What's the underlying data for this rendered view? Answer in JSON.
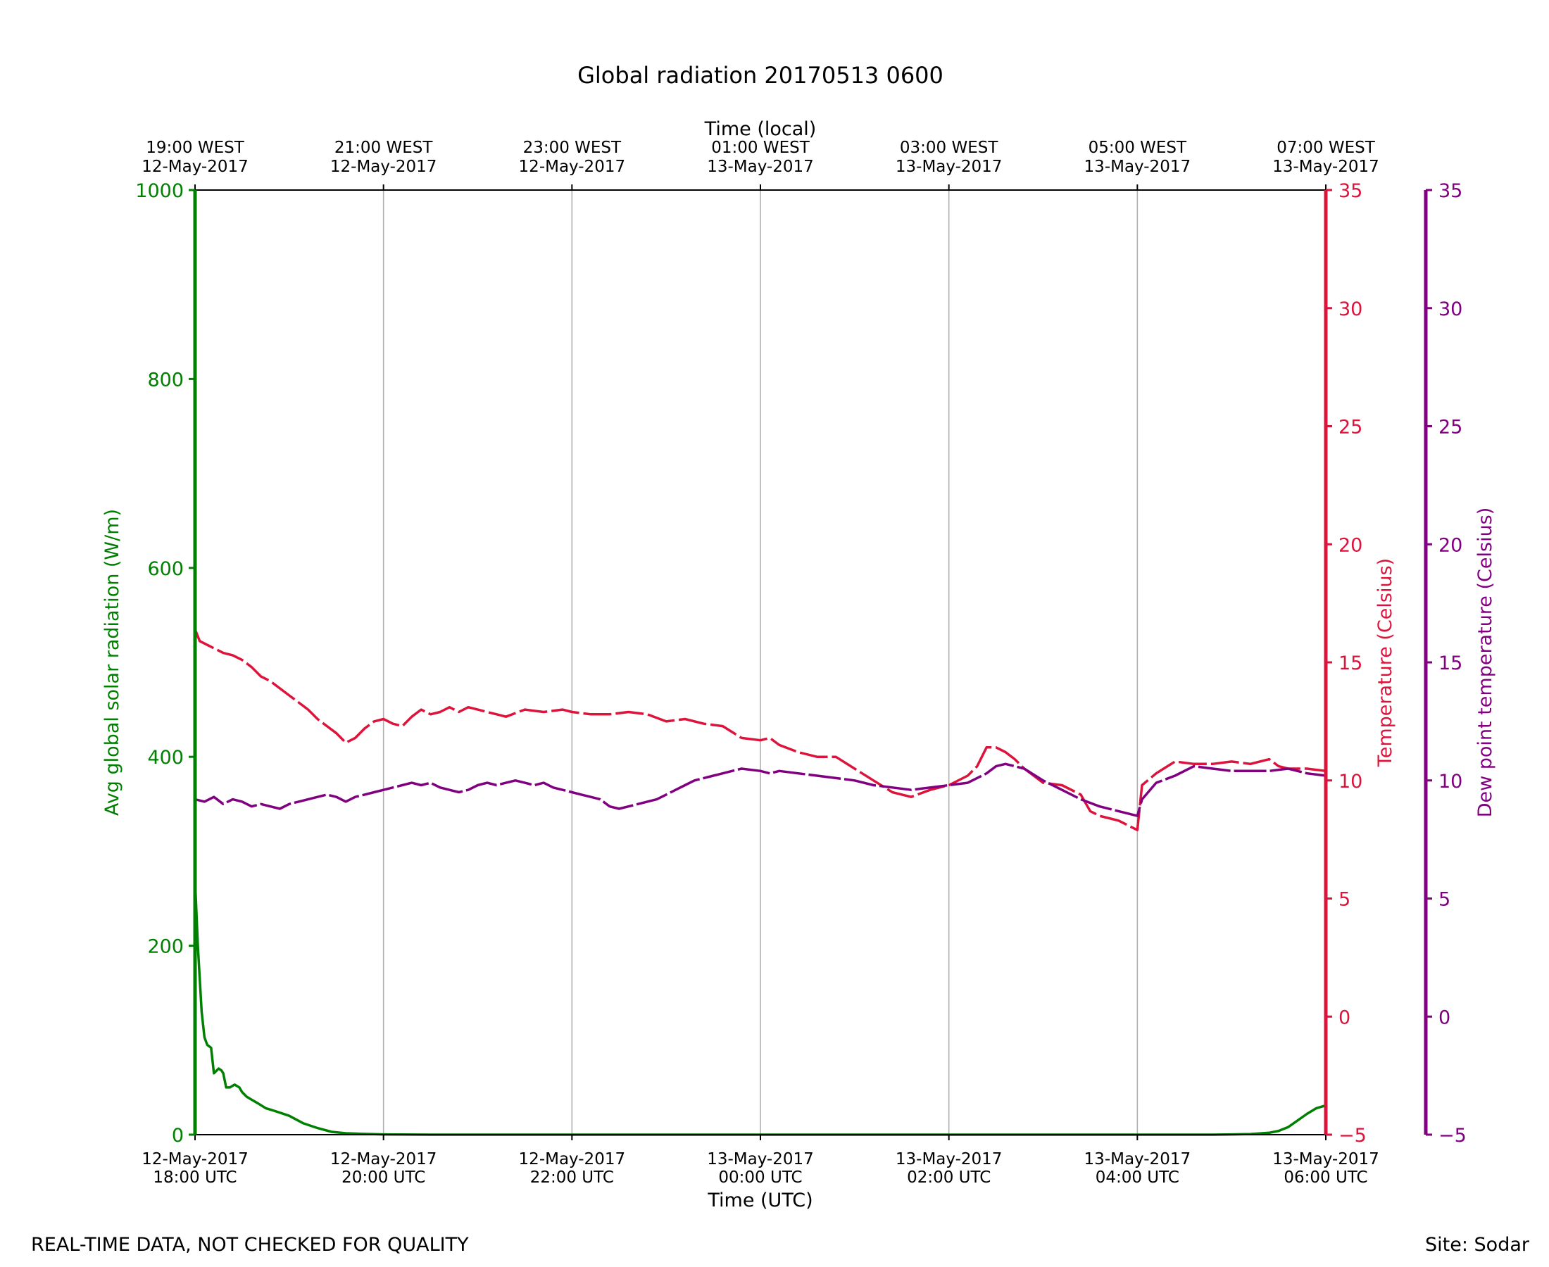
{
  "chart_data": {
    "type": "line",
    "title": "Global radiation 20170513 0600",
    "xlabel": "Time (UTC)",
    "xlabel_top": "Time (local)",
    "ylabel_left": "Avg global solar radiation (W/m)",
    "ylabel_right1": "Temperature (Celsius)",
    "ylabel_right2": "Dew point temperature (Celsius)",
    "footer_left": "REAL-TIME DATA, NOT CHECKED FOR QUALITY",
    "footer_right": "Site: Sodar",
    "x_range_hours": [
      0,
      12
    ],
    "bottom_ticks": [
      {
        "h": 0,
        "line1": "12-May-2017",
        "line2": "18:00 UTC"
      },
      {
        "h": 2,
        "line1": "12-May-2017",
        "line2": "20:00 UTC"
      },
      {
        "h": 4,
        "line1": "12-May-2017",
        "line2": "22:00 UTC"
      },
      {
        "h": 6,
        "line1": "13-May-2017",
        "line2": "00:00 UTC"
      },
      {
        "h": 8,
        "line1": "13-May-2017",
        "line2": "02:00 UTC"
      },
      {
        "h": 10,
        "line1": "13-May-2017",
        "line2": "04:00 UTC"
      },
      {
        "h": 12,
        "line1": "13-May-2017",
        "line2": "06:00 UTC"
      }
    ],
    "top_ticks": [
      {
        "h": 0,
        "line1": "19:00 WEST",
        "line2": "12-May-2017"
      },
      {
        "h": 2,
        "line1": "21:00 WEST",
        "line2": "12-May-2017"
      },
      {
        "h": 4,
        "line1": "23:00 WEST",
        "line2": "12-May-2017"
      },
      {
        "h": 6,
        "line1": "01:00 WEST",
        "line2": "13-May-2017"
      },
      {
        "h": 8,
        "line1": "03:00 WEST",
        "line2": "13-May-2017"
      },
      {
        "h": 10,
        "line1": "05:00 WEST",
        "line2": "13-May-2017"
      },
      {
        "h": 12,
        "line1": "07:00 WEST",
        "line2": "13-May-2017"
      }
    ],
    "ylim_radiation": [
      0,
      1000
    ],
    "yticks_radiation": [
      0,
      200,
      400,
      600,
      800,
      1000
    ],
    "ylim_temperature": [
      -5,
      35
    ],
    "yticks_temperature": [
      -5,
      0,
      5,
      10,
      15,
      20,
      25,
      30,
      35
    ],
    "colors": {
      "radiation": "#008000",
      "temperature": "#dc143c",
      "dewpoint": "#800080",
      "grid": "#b0b0b0",
      "text": "#000000"
    },
    "series": [
      {
        "name": "Avg global solar radiation",
        "axis": "radiation",
        "x": [
          0,
          0.03,
          0.07,
          0.1,
          0.13,
          0.17,
          0.2,
          0.25,
          0.28,
          0.3,
          0.33,
          0.37,
          0.42,
          0.47,
          0.5,
          0.55,
          0.6,
          0.67,
          0.75,
          0.85,
          1.0,
          1.15,
          1.3,
          1.45,
          1.6,
          1.75,
          1.9,
          2.0,
          2.2,
          2.5,
          4,
          6,
          8,
          10,
          10.5,
          10.8,
          11.0,
          11.2,
          11.4,
          11.5,
          11.6,
          11.7,
          11.8,
          11.9,
          12.0
        ],
        "y": [
          270,
          200,
          130,
          103,
          95,
          92,
          65,
          70,
          68,
          65,
          50,
          50,
          53,
          50,
          45,
          40,
          37,
          33,
          28,
          25,
          20,
          12,
          7,
          3,
          1.5,
          1,
          0.5,
          0.3,
          0.2,
          0,
          0,
          0,
          0,
          0,
          0,
          0,
          0.3,
          0.7,
          2,
          4,
          8,
          15,
          22,
          28,
          31
        ]
      },
      {
        "name": "Temperature",
        "axis": "temperature",
        "x": [
          0,
          0.05,
          0.1,
          0.2,
          0.3,
          0.4,
          0.5,
          0.6,
          0.7,
          0.8,
          0.9,
          1.0,
          1.1,
          1.2,
          1.3,
          1.4,
          1.5,
          1.6,
          1.7,
          1.8,
          1.9,
          2.0,
          2.1,
          2.2,
          2.3,
          2.4,
          2.5,
          2.6,
          2.7,
          2.8,
          2.9,
          3.0,
          3.1,
          3.2,
          3.3,
          3.5,
          3.7,
          3.9,
          4.0,
          4.2,
          4.4,
          4.6,
          4.8,
          5.0,
          5.2,
          5.4,
          5.6,
          5.8,
          6.0,
          6.1,
          6.2,
          6.4,
          6.6,
          6.8,
          7.0,
          7.2,
          7.4,
          7.6,
          7.8,
          8.0,
          8.2,
          8.3,
          8.4,
          8.5,
          8.6,
          8.7,
          8.8,
          8.9,
          9.0,
          9.2,
          9.4,
          9.5,
          9.6,
          9.8,
          10.0,
          10.05,
          10.2,
          10.4,
          10.6,
          10.8,
          11.0,
          11.2,
          11.4,
          11.5,
          11.6,
          11.8,
          12.0
        ],
        "y": [
          16.4,
          15.9,
          15.8,
          15.6,
          15.4,
          15.3,
          15.1,
          14.8,
          14.4,
          14.2,
          13.9,
          13.6,
          13.3,
          13.0,
          12.6,
          12.3,
          12.0,
          11.6,
          11.8,
          12.2,
          12.5,
          12.6,
          12.4,
          12.3,
          12.7,
          13.0,
          12.8,
          12.9,
          13.1,
          12.9,
          13.1,
          13.0,
          12.9,
          12.8,
          12.7,
          13.0,
          12.9,
          13.0,
          12.9,
          12.8,
          12.8,
          12.9,
          12.8,
          12.5,
          12.6,
          12.4,
          12.3,
          11.8,
          11.7,
          11.8,
          11.5,
          11.2,
          11.0,
          11.0,
          10.5,
          10.0,
          9.5,
          9.3,
          9.6,
          9.8,
          10.2,
          10.6,
          11.4,
          11.4,
          11.2,
          10.9,
          10.5,
          10.2,
          9.9,
          9.8,
          9.4,
          8.7,
          8.5,
          8.3,
          7.9,
          9.8,
          10.3,
          10.8,
          10.7,
          10.7,
          10.8,
          10.7,
          10.9,
          10.6,
          10.5,
          10.5,
          10.4
        ]
      },
      {
        "name": "Dew point temperature",
        "axis": "dewpoint",
        "x": [
          0,
          0.1,
          0.2,
          0.3,
          0.4,
          0.5,
          0.6,
          0.7,
          0.8,
          0.9,
          1.0,
          1.1,
          1.2,
          1.3,
          1.4,
          1.5,
          1.6,
          1.7,
          1.8,
          1.9,
          2.0,
          2.1,
          2.2,
          2.3,
          2.4,
          2.5,
          2.6,
          2.7,
          2.8,
          2.9,
          3.0,
          3.1,
          3.2,
          3.3,
          3.4,
          3.5,
          3.6,
          3.7,
          3.8,
          3.9,
          4.0,
          4.1,
          4.2,
          4.3,
          4.4,
          4.5,
          4.6,
          4.7,
          4.8,
          4.9,
          5.0,
          5.1,
          5.2,
          5.3,
          5.4,
          5.5,
          5.6,
          5.7,
          5.8,
          6.0,
          6.1,
          6.2,
          6.4,
          6.6,
          6.8,
          7.0,
          7.2,
          7.4,
          7.6,
          7.8,
          8.0,
          8.2,
          8.4,
          8.5,
          8.6,
          8.8,
          9.0,
          9.2,
          9.4,
          9.6,
          9.8,
          10.0,
          10.05,
          10.2,
          10.4,
          10.6,
          10.8,
          11.0,
          11.2,
          11.4,
          11.6,
          11.8,
          12.0
        ],
        "y": [
          9.2,
          9.1,
          9.3,
          9.0,
          9.2,
          9.1,
          8.9,
          9.0,
          8.9,
          8.8,
          9.0,
          9.1,
          9.2,
          9.3,
          9.4,
          9.3,
          9.1,
          9.3,
          9.4,
          9.5,
          9.6,
          9.7,
          9.8,
          9.9,
          9.8,
          9.9,
          9.7,
          9.6,
          9.5,
          9.6,
          9.8,
          9.9,
          9.8,
          9.9,
          10.0,
          9.9,
          9.8,
          9.9,
          9.7,
          9.6,
          9.5,
          9.4,
          9.3,
          9.2,
          8.9,
          8.8,
          8.9,
          9.0,
          9.1,
          9.2,
          9.4,
          9.6,
          9.8,
          10.0,
          10.1,
          10.2,
          10.3,
          10.4,
          10.5,
          10.4,
          10.3,
          10.4,
          10.3,
          10.2,
          10.1,
          10.0,
          9.8,
          9.7,
          9.6,
          9.7,
          9.8,
          9.9,
          10.3,
          10.6,
          10.7,
          10.5,
          10.0,
          9.6,
          9.2,
          8.9,
          8.7,
          8.5,
          9.2,
          9.9,
          10.2,
          10.6,
          10.5,
          10.4,
          10.4,
          10.4,
          10.5,
          10.3,
          10.2
        ]
      }
    ]
  }
}
